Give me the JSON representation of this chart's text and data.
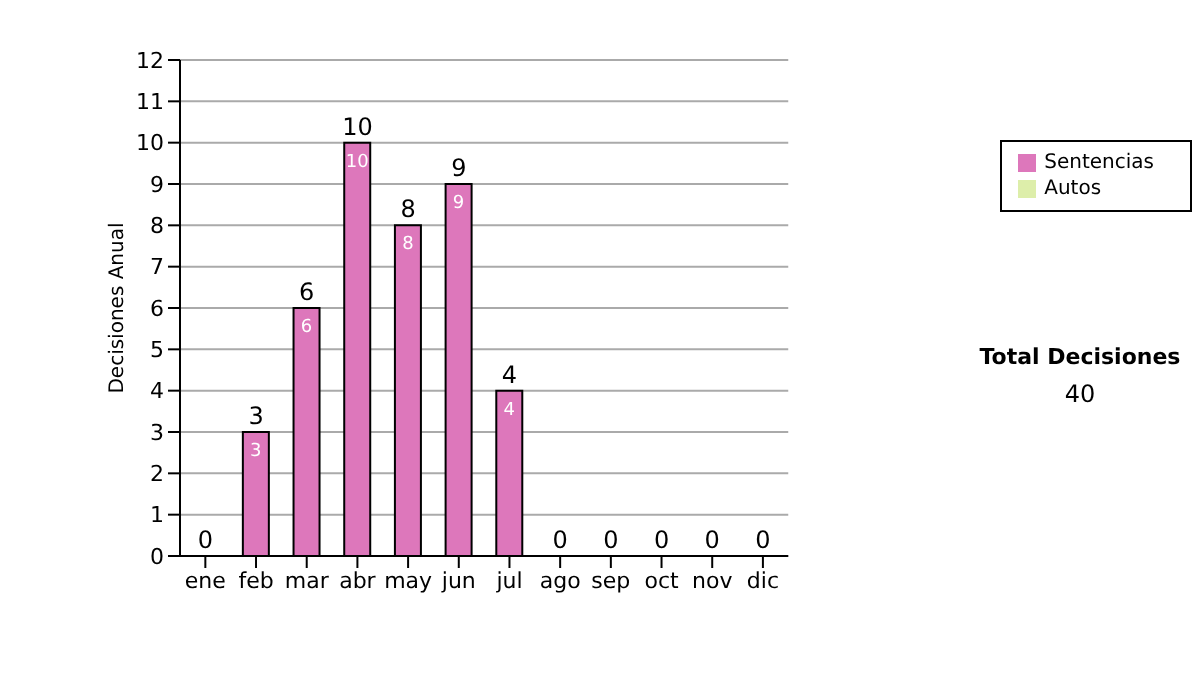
{
  "chart_data": {
    "type": "bar",
    "ylabel": "Decisiones Anual",
    "categories": [
      "ene",
      "feb",
      "mar",
      "abr",
      "may",
      "jun",
      "jul",
      "ago",
      "sep",
      "oct",
      "nov",
      "dic"
    ],
    "series": [
      {
        "name": "Sentencias",
        "color": "#dd77bb",
        "values": [
          0,
          3,
          6,
          10,
          8,
          9,
          4,
          0,
          0,
          0,
          0,
          0
        ],
        "value_labels": [
          null,
          "3",
          "6",
          "10",
          "8",
          "9",
          "4",
          null,
          null,
          null,
          null,
          null
        ]
      },
      {
        "name": "Autos",
        "color": "#ddeeaa",
        "values": [
          0,
          0,
          0,
          0,
          0,
          0,
          0,
          0,
          0,
          0,
          0,
          0
        ]
      }
    ],
    "stacked": true,
    "totals": [
      "0",
      "3",
      "6",
      "10",
      "8",
      "9",
      "4",
      "0",
      "0",
      "0",
      "0",
      "0"
    ],
    "ylim": [
      0,
      12
    ],
    "yticks": [
      0,
      1,
      2,
      3,
      4,
      5,
      6,
      7,
      8,
      9,
      10,
      11,
      12
    ],
    "grid": "y",
    "legend": "right",
    "annotations": [
      "Total Decisiones",
      "40"
    ]
  }
}
